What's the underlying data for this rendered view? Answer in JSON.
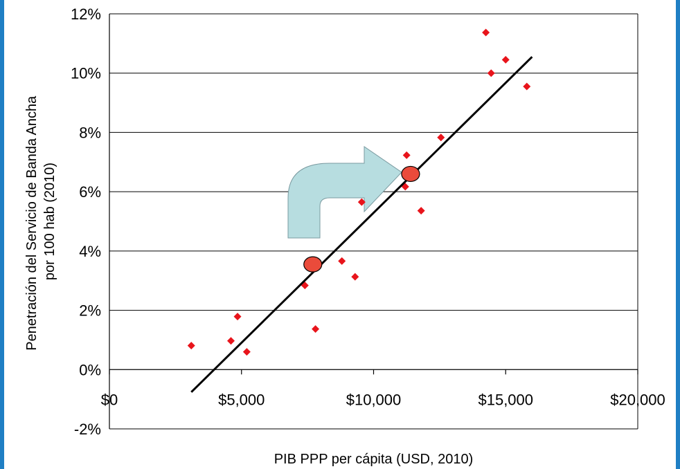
{
  "chart_data": {
    "type": "scatter",
    "title": "",
    "xlabel": "PIB PPP per cápita (USD, 2010)",
    "ylabel_lines": [
      "Penetración del Servicio de Banda Ancha",
      "por 100 hab (2010)"
    ],
    "xlim": [
      0,
      20000
    ],
    "ylim": [
      -0.02,
      0.12
    ],
    "x_ticks": [
      0,
      5000,
      10000,
      15000,
      20000
    ],
    "x_tick_labels": [
      "$0",
      "$5,000",
      "$10,000",
      "$15,000",
      "$20,000"
    ],
    "y_ticks": [
      -0.02,
      0,
      0.02,
      0.04,
      0.06,
      0.08,
      0.1,
      0.12
    ],
    "y_tick_labels": [
      "-2%",
      "0%",
      "2%",
      "4%",
      "6%",
      "8%",
      "10%",
      "12%"
    ],
    "grid": "horizontal",
    "legend": "none",
    "point_color": "#e8141b",
    "trend_color": "#000000",
    "highlight_color": "#ea4b3b",
    "arrow_color": "#b7dde0",
    "points": [
      {
        "x": 3100,
        "y": 0.0081
      },
      {
        "x": 4600,
        "y": 0.0097
      },
      {
        "x": 4850,
        "y": 0.0179
      },
      {
        "x": 5200,
        "y": 0.006
      },
      {
        "x": 7400,
        "y": 0.0284
      },
      {
        "x": 7800,
        "y": 0.0137
      },
      {
        "x": 8800,
        "y": 0.0366
      },
      {
        "x": 9300,
        "y": 0.0313
      },
      {
        "x": 9550,
        "y": 0.0565
      },
      {
        "x": 11200,
        "y": 0.0617
      },
      {
        "x": 11250,
        "y": 0.0723
      },
      {
        "x": 11800,
        "y": 0.0536
      },
      {
        "x": 12550,
        "y": 0.0783
      },
      {
        "x": 14250,
        "y": 0.1137
      },
      {
        "x": 14450,
        "y": 0.1
      },
      {
        "x": 15000,
        "y": 0.1045
      },
      {
        "x": 15800,
        "y": 0.0955
      }
    ],
    "trendline": [
      {
        "x": 3100,
        "y": -0.0076
      },
      {
        "x": 16000,
        "y": 0.1055
      }
    ],
    "highlights": [
      {
        "x": 7700,
        "y": 0.0355
      },
      {
        "x": 11400,
        "y": 0.066
      }
    ]
  }
}
